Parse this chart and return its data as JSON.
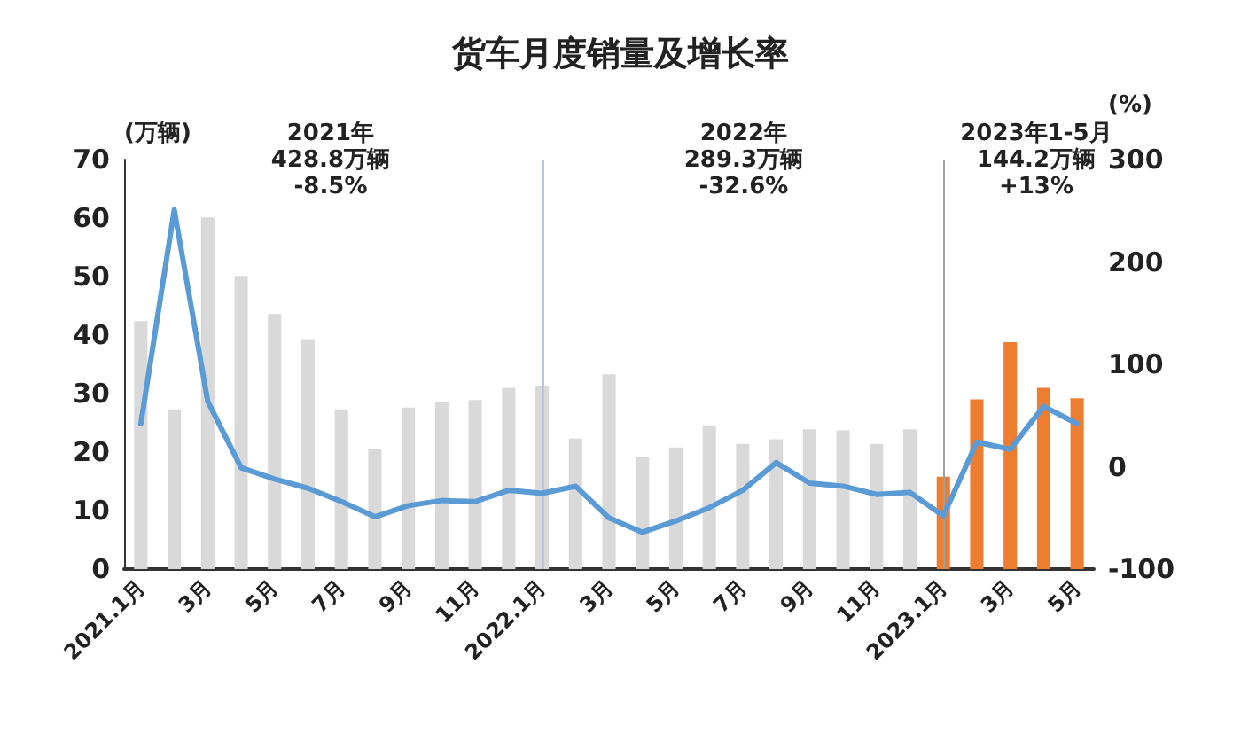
{
  "chart_data": {
    "type": "bar",
    "title": "货车月度销量及增长率",
    "ylabel": "(万辆)",
    "y2label": "(%)",
    "categories": [
      "2021.1月",
      null,
      "3月",
      null,
      "5月",
      null,
      "7月",
      null,
      "9月",
      null,
      "11月",
      null,
      "2022.1月",
      null,
      "3月",
      null,
      "5月",
      null,
      "7月",
      null,
      "9月",
      null,
      "11月",
      null,
      "2023.1月",
      null,
      "3月",
      null,
      "5月"
    ],
    "series": [
      {
        "colors": [
          "#d9d9d9",
          "#d9d9d9",
          "#d9d9d9",
          "#d9d9d9",
          "#d9d9d9",
          "#d9d9d9",
          "#d9d9d9",
          "#d9d9d9",
          "#d9d9d9",
          "#d9d9d9",
          "#d9d9d9",
          "#d9d9d9",
          "#d9d9d9",
          "#d9d9d9",
          "#d9d9d9",
          "#d9d9d9",
          "#d9d9d9",
          "#d9d9d9",
          "#d9d9d9",
          "#d9d9d9",
          "#d9d9d9",
          "#d9d9d9",
          "#d9d9d9",
          "#d9d9d9",
          "#ed7d31",
          "#ed7d31",
          "#ed7d31",
          "#ed7d31",
          "#ed7d31"
        ],
        "values": [
          42.4,
          27.3,
          60.1,
          50.1,
          43.6,
          39.3,
          27.3,
          20.6,
          27.6,
          28.5,
          28.9,
          31.0,
          31.4,
          22.3,
          33.3,
          19.1,
          20.8,
          24.6,
          21.4,
          22.2,
          23.9,
          23.7,
          21.4,
          23.9,
          15.8,
          29.0,
          38.8,
          31.0,
          29.2
        ]
      },
      {
        "type": "line",
        "axis": "y2",
        "color": "#5b9bd5",
        "values": [
          42,
          251,
          64,
          -1,
          -12,
          -21,
          -34,
          -49,
          -38,
          -33,
          -34,
          -23,
          -26,
          -19,
          -50,
          -64,
          -53,
          -40,
          -23,
          4,
          -16,
          -19,
          -27,
          -25,
          -48,
          24,
          17,
          59,
          42
        ]
      }
    ],
    "ylim": [
      0,
      70
    ],
    "yticks": [
      0,
      10,
      20,
      30,
      40,
      50,
      60,
      70
    ],
    "y2lim": [
      -100,
      300
    ],
    "y2ticks": [
      -100,
      0,
      100,
      200,
      300
    ],
    "ref_lines": [
      {
        "axis": "x",
        "value": "2022.1月",
        "color": "#b4c7e7"
      },
      {
        "axis": "x",
        "value": "2023.1月",
        "color": "#a0a0a0"
      }
    ],
    "annotations": [
      "2021年\n428.8万辆\n-8.5%",
      "2022年\n289.3万辆\n-32.6%",
      "2023年1-5月\n144.2万辆\n+13%"
    ],
    "grid": false,
    "marker": "none",
    "line_style": "solid"
  }
}
